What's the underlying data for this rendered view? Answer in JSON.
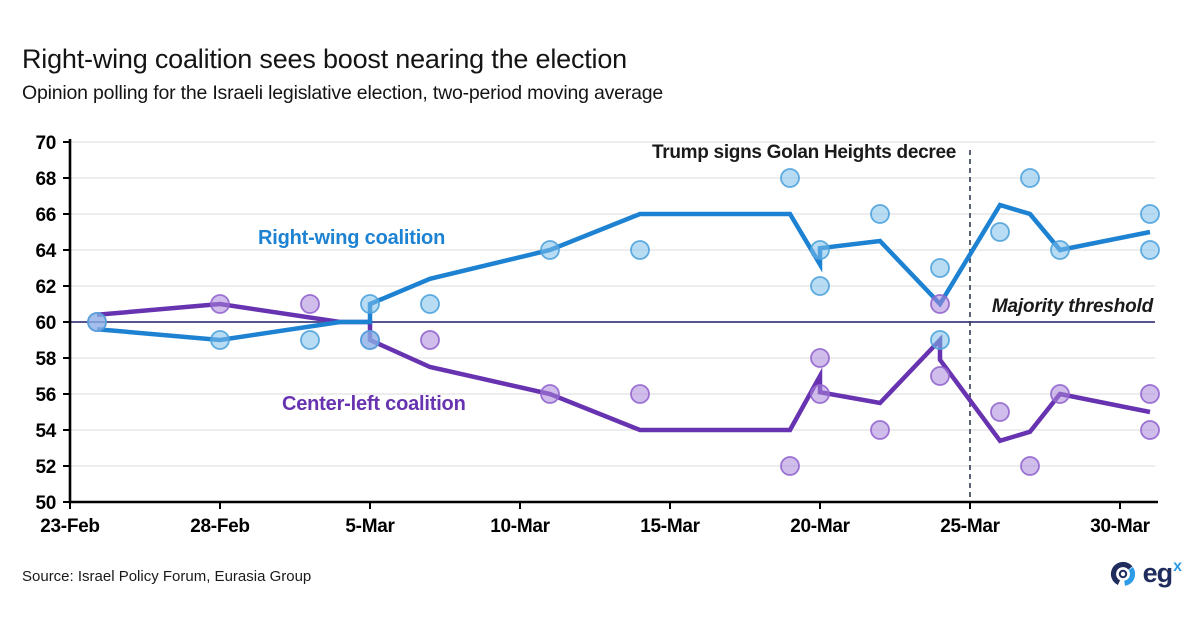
{
  "header": {
    "title": "Right-wing coalition sees boost nearing the election",
    "subtitle": "Opinion polling for the Israeli legislative election, two-period moving average"
  },
  "footer": {
    "source": "Source: Israel Policy Forum, Eurasia Group",
    "logo_text": "eg",
    "logo_sup": "x"
  },
  "chart_data": {
    "type": "line",
    "title": "Right-wing coalition sees boost nearing the election",
    "subtitle": "Opinion polling for the Israeli legislative election, two-period moving average",
    "x_axis": {
      "day0_date": "23-Feb",
      "tick_days": [
        0,
        5,
        10,
        15,
        20,
        25,
        30,
        35
      ],
      "tick_labels": [
        "23-Feb",
        "28-Feb",
        "5-Mar",
        "10-Mar",
        "15-Mar",
        "20-Mar",
        "25-Mar",
        "30-Mar"
      ],
      "max_day": 36.5
    },
    "y_axis": {
      "min": 50,
      "max": 70,
      "tick_step": 2,
      "ticks": [
        50,
        52,
        54,
        56,
        58,
        60,
        62,
        64,
        66,
        68,
        70
      ]
    },
    "grid": {
      "on": true,
      "color": "#DBDBDB"
    },
    "axis_color": "#000000",
    "series": [
      {
        "name": "Right-wing coalition",
        "kind": "two-period moving average",
        "color": "#1E82D2",
        "points_day_value": [
          [
            0.9,
            59.6
          ],
          [
            5,
            59
          ],
          [
            9,
            60
          ],
          [
            10,
            60
          ],
          [
            10,
            61
          ],
          [
            12,
            62.4
          ],
          [
            16,
            64
          ],
          [
            19,
            66
          ],
          [
            24,
            66
          ],
          [
            25,
            63.2
          ],
          [
            25,
            64.1
          ],
          [
            27,
            64.5
          ],
          [
            29,
            61
          ],
          [
            31,
            66.5
          ],
          [
            32,
            66
          ],
          [
            33,
            64
          ],
          [
            36,
            65
          ]
        ]
      },
      {
        "name": "Center-left coalition",
        "kind": "two-period moving average",
        "color": "#6733B0",
        "points_day_value": [
          [
            0.9,
            60.4
          ],
          [
            5,
            61
          ],
          [
            9,
            60
          ],
          [
            10,
            60
          ],
          [
            10,
            59
          ],
          [
            12,
            57.5
          ],
          [
            16,
            56
          ],
          [
            19,
            54
          ],
          [
            24,
            54
          ],
          [
            25,
            57
          ],
          [
            25,
            56.1
          ],
          [
            27,
            55.5
          ],
          [
            29,
            59
          ],
          [
            29,
            57.9
          ],
          [
            31,
            53.4
          ],
          [
            32,
            53.9
          ],
          [
            33,
            56
          ],
          [
            36,
            55
          ]
        ]
      }
    ],
    "scatter_series": [
      {
        "name": "Right-wing coalition polls",
        "fill": "#7EC0EA",
        "stroke": "#4FA3DC",
        "points_day_value": [
          [
            0.9,
            60
          ],
          [
            5,
            59
          ],
          [
            8,
            59
          ],
          [
            10,
            61
          ],
          [
            10,
            59
          ],
          [
            12,
            61
          ],
          [
            16,
            64
          ],
          [
            19,
            64
          ],
          [
            24,
            68
          ],
          [
            25,
            64
          ],
          [
            25,
            62
          ],
          [
            27,
            66
          ],
          [
            29,
            63
          ],
          [
            29,
            59
          ],
          [
            31,
            65
          ],
          [
            32,
            68
          ],
          [
            33,
            64
          ],
          [
            36,
            66
          ],
          [
            36,
            64
          ]
        ]
      },
      {
        "name": "Center-left coalition polls",
        "fill": "#AB86DB",
        "stroke": "#9266CE",
        "points_day_value": [
          [
            0.9,
            60
          ],
          [
            5,
            61
          ],
          [
            8,
            61
          ],
          [
            10,
            59
          ],
          [
            12,
            59
          ],
          [
            16,
            56
          ],
          [
            19,
            56
          ],
          [
            24,
            52
          ],
          [
            25,
            58
          ],
          [
            25,
            56
          ],
          [
            27,
            54
          ],
          [
            29,
            61
          ],
          [
            29,
            57
          ],
          [
            31,
            55
          ],
          [
            32,
            52
          ],
          [
            33,
            56
          ],
          [
            36,
            56
          ],
          [
            36,
            54
          ]
        ]
      }
    ],
    "annotations": {
      "event": {
        "day": 30,
        "date": "25-Mar",
        "label": "Trump signs Golan Heights decree",
        "line_color": "#343B55"
      },
      "threshold": {
        "value": 60,
        "label": "Majority threshold",
        "line_color": "#56568E"
      }
    }
  }
}
